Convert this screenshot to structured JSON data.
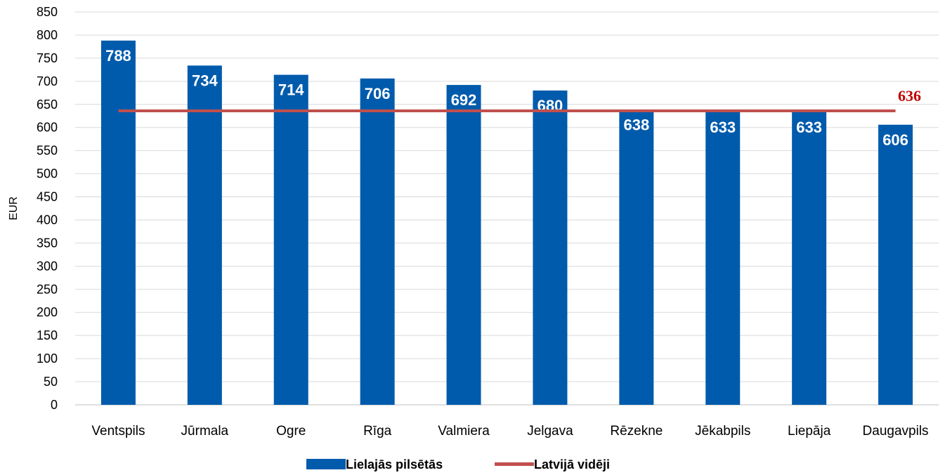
{
  "chart_data": {
    "type": "bar",
    "ylabel": "EUR",
    "ylim": [
      0,
      850
    ],
    "ytick_step": 50,
    "grid": true,
    "legend_position": "bottom",
    "categories": [
      "Ventspils",
      "Jūrmala",
      "Ogre",
      "Rīga",
      "Valmiera",
      "Jelgava",
      "Rēzekne",
      "Jēkabpils",
      "Liepāja",
      "Daugavpils"
    ],
    "series": [
      {
        "name": "Lielajās pilsētās",
        "type": "bar",
        "color": "#005bac",
        "values": [
          788,
          734,
          714,
          706,
          692,
          680,
          638,
          633,
          633,
          606
        ]
      },
      {
        "name": "Latvijā vidēji",
        "type": "line",
        "color": "#c0504d",
        "value": 636,
        "label": "636",
        "label_color": "#c00000"
      }
    ]
  }
}
